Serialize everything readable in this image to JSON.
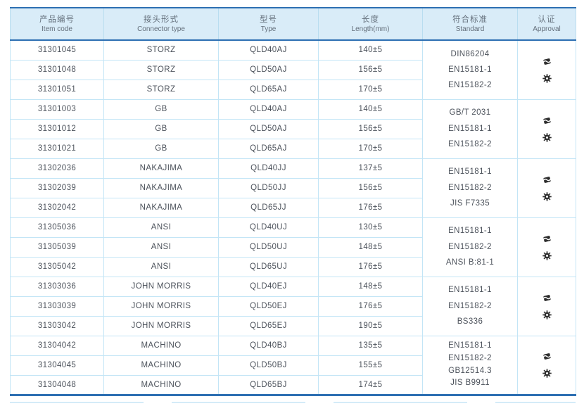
{
  "colors": {
    "header_bg": "#d9ecf8",
    "border_light": "#c3e5f6",
    "border_heavy": "#2d6fb2",
    "text_body": "#4d535c",
    "text_header": "#646f7b",
    "icon_color": "#2e2e2e"
  },
  "table": {
    "header": {
      "columns": [
        {
          "zh": "产品编号",
          "en": "Item code"
        },
        {
          "zh": "接头形式",
          "en": "Connector type"
        },
        {
          "zh": "型号",
          "en": "Type"
        },
        {
          "zh": "长度",
          "en": "Length(mm)"
        },
        {
          "zh": "符合标准",
          "en": "Standard"
        },
        {
          "zh": "认证",
          "en": "Approval"
        }
      ]
    },
    "groups": [
      {
        "rows": [
          {
            "item_code": "31301045",
            "connector_type": "STORZ",
            "type": "QLD40AJ",
            "length": "140±5"
          },
          {
            "item_code": "31301048",
            "connector_type": "STORZ",
            "type": "QLD50AJ",
            "length": "156±5"
          },
          {
            "item_code": "31301051",
            "connector_type": "STORZ",
            "type": "QLD65AJ",
            "length": "170±5"
          }
        ],
        "standards": [
          "DIN86204",
          "EN15181-1",
          "EN15182-2"
        ],
        "approval_icons": [
          "certificate-icon",
          "wheelmark-icon"
        ]
      },
      {
        "rows": [
          {
            "item_code": "31301003",
            "connector_type": "GB",
            "type": "QLD40AJ",
            "length": "140±5"
          },
          {
            "item_code": "31301012",
            "connector_type": "GB",
            "type": "QLD50AJ",
            "length": "156±5"
          },
          {
            "item_code": "31301021",
            "connector_type": "GB",
            "type": "QLD65AJ",
            "length": "170±5"
          }
        ],
        "standards": [
          "GB/T 2031",
          "EN15181-1",
          "EN15182-2"
        ],
        "approval_icons": [
          "certificate-icon",
          "wheelmark-icon"
        ]
      },
      {
        "rows": [
          {
            "item_code": "31302036",
            "connector_type": "NAKAJIMA",
            "type": "QLD40JJ",
            "length": "137±5"
          },
          {
            "item_code": "31302039",
            "connector_type": "NAKAJIMA",
            "type": "QLD50JJ",
            "length": "156±5"
          },
          {
            "item_code": "31302042",
            "connector_type": "NAKAJIMA",
            "type": "QLD65JJ",
            "length": "176±5"
          }
        ],
        "standards": [
          "EN15181-1",
          "EN15182-2",
          "JIS F7335"
        ],
        "approval_icons": [
          "certificate-icon",
          "wheelmark-icon"
        ]
      },
      {
        "rows": [
          {
            "item_code": "31305036",
            "connector_type": "ANSI",
            "type": "QLD40UJ",
            "length": "130±5"
          },
          {
            "item_code": "31305039",
            "connector_type": "ANSI",
            "type": "QLD50UJ",
            "length": "148±5"
          },
          {
            "item_code": "31305042",
            "connector_type": "ANSI",
            "type": "QLD65UJ",
            "length": "176±5"
          }
        ],
        "standards": [
          "EN15181-1",
          "EN15182-2",
          "ANSI B:81-1"
        ],
        "approval_icons": [
          "certificate-icon",
          "wheelmark-icon"
        ]
      },
      {
        "rows": [
          {
            "item_code": "31303036",
            "connector_type": "JOHN MORRIS",
            "type": "QLD40EJ",
            "length": "148±5"
          },
          {
            "item_code": "31303039",
            "connector_type": "JOHN MORRIS",
            "type": "QLD50EJ",
            "length": "176±5"
          },
          {
            "item_code": "31303042",
            "connector_type": "JOHN MORRIS",
            "type": "QLD65EJ",
            "length": "190±5"
          }
        ],
        "standards": [
          "EN15181-1",
          "EN15182-2",
          "BS336"
        ],
        "approval_icons": [
          "certificate-icon",
          "wheelmark-icon"
        ]
      },
      {
        "rows": [
          {
            "item_code": "31304042",
            "connector_type": "MACHINO",
            "type": "QLD40BJ",
            "length": "135±5"
          },
          {
            "item_code": "31304045",
            "connector_type": "MACHINO",
            "type": "QLD50BJ",
            "length": "155±5"
          },
          {
            "item_code": "31304048",
            "connector_type": "MACHINO",
            "type": "QLD65BJ",
            "length": "174±5"
          }
        ],
        "standards": [
          "EN15181-1",
          "EN15182-2",
          "GB12514.3",
          "JIS B9911"
        ],
        "approval_icons": [
          "certificate-icon",
          "wheelmark-icon"
        ]
      }
    ]
  }
}
